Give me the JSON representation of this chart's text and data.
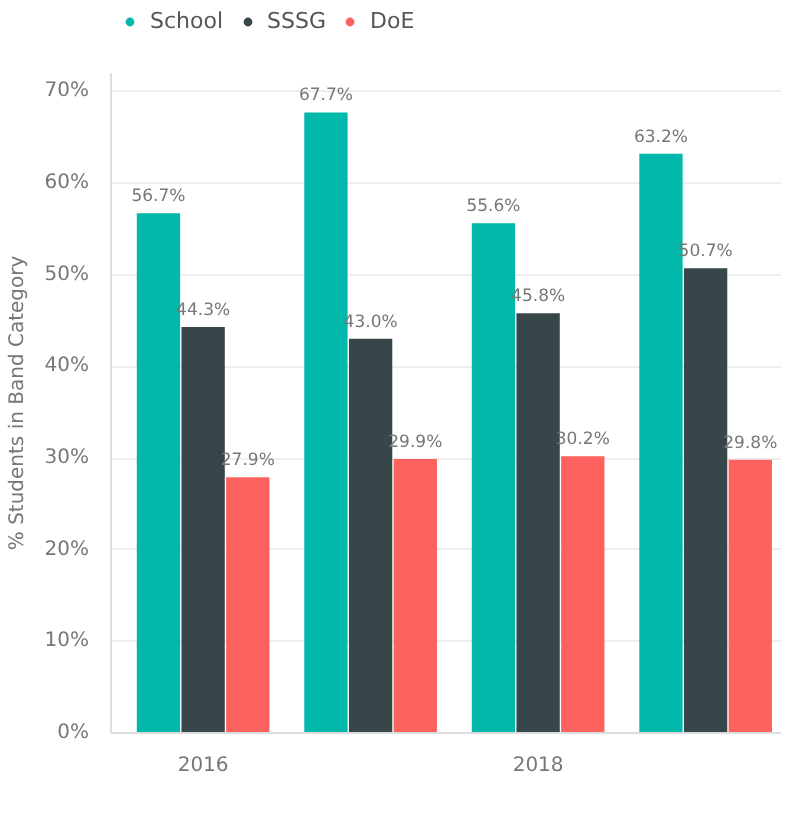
{
  "chart_data": {
    "type": "bar",
    "ylabel": "% Students in Band Category",
    "categories": [
      "2016",
      null,
      "2018",
      null
    ],
    "series": [
      {
        "name": "School",
        "color": "#01b8aa",
        "values": [
          56.7,
          67.7,
          55.6,
          63.2
        ],
        "value_labels": [
          "56.7%",
          "67.7%",
          "55.6%",
          "63.2%"
        ]
      },
      {
        "name": "SSSG",
        "color": "#374649",
        "values": [
          44.3,
          43.0,
          45.8,
          50.7
        ],
        "value_labels": [
          "44.3%",
          "43.0%",
          "45.8%",
          "50.7%"
        ]
      },
      {
        "name": "DoE",
        "color": "#fd625e",
        "values": [
          27.9,
          29.9,
          30.2,
          29.8
        ],
        "value_labels": [
          "27.9%",
          "29.9%",
          "30.2%",
          "29.8%"
        ]
      }
    ],
    "ylim": [
      0,
      72
    ],
    "yticks": [
      {
        "value": 0,
        "label": "0%"
      },
      {
        "value": 10,
        "label": "10%"
      },
      {
        "value": 20,
        "label": "20%"
      },
      {
        "value": 30,
        "label": "30%"
      },
      {
        "value": 40,
        "label": "40%"
      },
      {
        "value": 50,
        "label": "50%"
      },
      {
        "value": 60,
        "label": "60%"
      },
      {
        "value": 70,
        "label": "70%"
      }
    ],
    "grid": "y",
    "legend": "top left"
  }
}
